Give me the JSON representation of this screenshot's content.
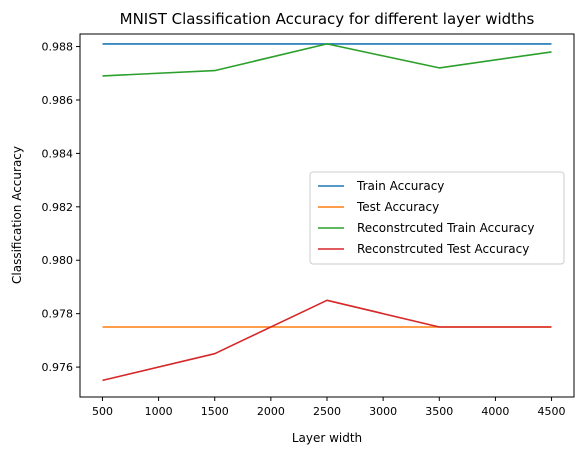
{
  "chart_data": {
    "type": "line",
    "title": "MNIST Classification Accuracy for different layer widths",
    "xlabel": "Layer width",
    "ylabel": "Classification Accuracy",
    "x": [
      500,
      1500,
      2500,
      3500,
      4500
    ],
    "xlim": [
      300,
      4700
    ],
    "ylim": [
      0.97488,
      0.98847
    ],
    "xticks": [
      500,
      1000,
      1500,
      2000,
      2500,
      3000,
      3500,
      4000,
      4500
    ],
    "yticks": [
      0.976,
      0.978,
      0.98,
      0.982,
      0.984,
      0.986,
      0.988
    ],
    "ytick_labels": [
      "0.976",
      "0.978",
      "0.980",
      "0.982",
      "0.984",
      "0.986",
      "0.988"
    ],
    "grid": false,
    "legend_position": "center-right",
    "series": [
      {
        "name": "Train Accuracy",
        "color": "#1f77b4",
        "values": [
          0.9881,
          0.9881,
          0.9881,
          0.9881,
          0.9881
        ]
      },
      {
        "name": "Test Accuracy",
        "color": "#ff7f0e",
        "values": [
          0.9775,
          0.9775,
          0.9775,
          0.9775,
          0.9775
        ]
      },
      {
        "name": "Reconstrcuted Train Accuracy",
        "color": "#2ca02c",
        "values": [
          0.9869,
          0.9871,
          0.9881,
          0.9872,
          0.9878
        ]
      },
      {
        "name": "Reconstrcuted Test Accuracy",
        "color": "#d62728",
        "values": [
          0.9755,
          0.9765,
          0.9785,
          0.9775,
          0.9775
        ]
      }
    ]
  }
}
